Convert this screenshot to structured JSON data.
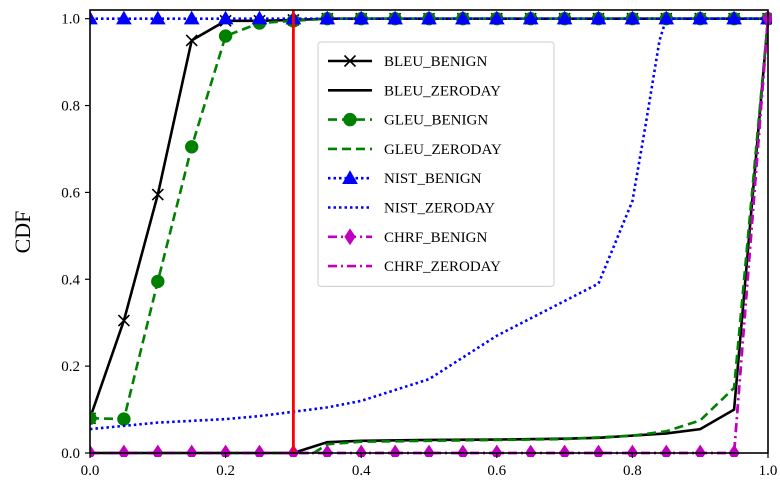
{
  "chart_data": {
    "type": "line",
    "title": "",
    "xlabel": "",
    "ylabel": "CDF",
    "xlim": [
      0,
      1
    ],
    "ylim": [
      0,
      1.02
    ],
    "grid": false,
    "legend_position": "upper-center-right",
    "xticks": [
      0.0,
      0.2,
      0.4,
      0.6,
      0.8,
      1.0
    ],
    "xtick_labels": [
      "0.0",
      "0.2",
      "0.4",
      "0.6",
      "0.8",
      "1.0"
    ],
    "yticks": [
      0.0,
      0.2,
      0.4,
      0.6,
      0.8,
      1.0
    ],
    "ytick_labels": [
      "0.0",
      "0.2",
      "0.4",
      "0.6",
      "0.8",
      "1.0"
    ],
    "threshold_line": {
      "x": 0.3,
      "color": "#ff0000"
    },
    "series": [
      {
        "name": "BLEU_BENIGN",
        "color": "#000000",
        "line_style": "solid",
        "marker": "x",
        "x": [
          0.0,
          0.05,
          0.1,
          0.15,
          0.2,
          0.25,
          0.3,
          0.35,
          0.4,
          0.45,
          0.5,
          0.55,
          0.6,
          0.65,
          0.7,
          0.75,
          0.8,
          0.85,
          0.9,
          0.95,
          1.0
        ],
        "y": [
          0.08,
          0.305,
          0.595,
          0.95,
          0.995,
          0.995,
          0.997,
          1.0,
          1.0,
          1.0,
          1.0,
          1.0,
          1.0,
          1.0,
          1.0,
          1.0,
          1.0,
          1.0,
          1.0,
          1.0,
          1.0
        ]
      },
      {
        "name": "BLEU_ZERODAY",
        "color": "#000000",
        "line_style": "solid",
        "marker": "none",
        "x": [
          0.0,
          0.3,
          0.32,
          0.35,
          0.4,
          0.5,
          0.6,
          0.7,
          0.75,
          0.8,
          0.85,
          0.9,
          0.95,
          1.0
        ],
        "y": [
          0.0,
          0.0,
          0.01,
          0.025,
          0.028,
          0.03,
          0.031,
          0.033,
          0.035,
          0.04,
          0.045,
          0.055,
          0.1,
          1.0
        ]
      },
      {
        "name": "GLEU_BENIGN",
        "color": "#008000",
        "line_style": "dashed",
        "marker": "o",
        "x": [
          0.0,
          0.05,
          0.1,
          0.15,
          0.2,
          0.25,
          0.3,
          0.35,
          0.4,
          0.45,
          0.5,
          0.55,
          0.6,
          0.65,
          0.7,
          0.75,
          0.8,
          0.85,
          0.9,
          0.95,
          1.0
        ],
        "y": [
          0.08,
          0.078,
          0.395,
          0.705,
          0.96,
          0.99,
          0.995,
          1.0,
          1.0,
          1.0,
          1.0,
          1.0,
          1.0,
          1.0,
          1.0,
          1.0,
          1.0,
          1.0,
          1.0,
          1.0,
          1.0
        ]
      },
      {
        "name": "GLEU_ZERODAY",
        "color": "#008000",
        "line_style": "dashed",
        "marker": "none",
        "x": [
          0.0,
          0.33,
          0.35,
          0.4,
          0.5,
          0.6,
          0.7,
          0.8,
          0.85,
          0.9,
          0.95,
          1.0
        ],
        "y": [
          0.0,
          0.0,
          0.02,
          0.026,
          0.028,
          0.03,
          0.032,
          0.04,
          0.05,
          0.075,
          0.15,
          1.0
        ]
      },
      {
        "name": "NIST_BENIGN",
        "color": "#0000ff",
        "line_style": "dotted",
        "marker": "^",
        "x": [
          0.0,
          0.05,
          0.1,
          0.15,
          0.2,
          0.25,
          0.3,
          0.35,
          0.4,
          0.45,
          0.5,
          0.55,
          0.6,
          0.65,
          0.7,
          0.75,
          0.8,
          0.85,
          0.9,
          0.95,
          1.0
        ],
        "y": [
          1.0,
          1.0,
          1.0,
          1.0,
          1.0,
          1.0,
          1.0,
          1.0,
          1.0,
          1.0,
          1.0,
          1.0,
          1.0,
          1.0,
          1.0,
          1.0,
          1.0,
          1.0,
          1.0,
          1.0,
          1.0
        ]
      },
      {
        "name": "NIST_ZERODAY",
        "color": "#0000ff",
        "line_style": "dotted",
        "marker": "none",
        "x": [
          0.0,
          0.1,
          0.2,
          0.25,
          0.3,
          0.35,
          0.4,
          0.45,
          0.5,
          0.55,
          0.6,
          0.65,
          0.7,
          0.75,
          0.8,
          0.82,
          0.84,
          0.85,
          0.9,
          1.0
        ],
        "y": [
          0.055,
          0.07,
          0.078,
          0.085,
          0.095,
          0.105,
          0.12,
          0.145,
          0.17,
          0.22,
          0.27,
          0.31,
          0.35,
          0.39,
          0.58,
          0.76,
          0.95,
          1.0,
          1.0,
          1.0
        ]
      },
      {
        "name": "CHRF_BENIGN",
        "color": "#bf00bf",
        "line_style": "dashdot",
        "marker": "d",
        "x": [
          0.0,
          0.05,
          0.1,
          0.15,
          0.2,
          0.25,
          0.3,
          0.35,
          0.4,
          0.45,
          0.5,
          0.55,
          0.6,
          0.65,
          0.7,
          0.75,
          0.8,
          0.85,
          0.9,
          0.95,
          1.0
        ],
        "y": [
          0.0,
          0.0,
          0.0,
          0.0,
          0.0,
          0.0,
          0.0,
          0.0,
          0.0,
          0.0,
          0.0,
          0.0,
          0.0,
          0.0,
          0.0,
          0.0,
          0.0,
          0.0,
          0.0,
          0.0,
          1.0
        ]
      },
      {
        "name": "CHRF_ZERODAY",
        "color": "#bf00bf",
        "line_style": "dashdot",
        "marker": "none",
        "x": [
          0.0,
          0.95,
          1.0
        ],
        "y": [
          0.0,
          0.0,
          1.0
        ]
      }
    ]
  }
}
